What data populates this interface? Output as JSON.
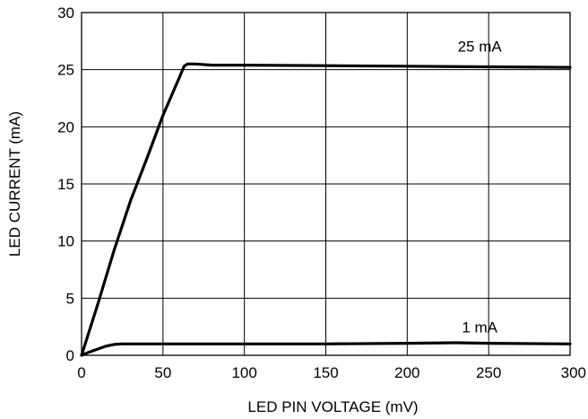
{
  "chart_data": {
    "type": "line",
    "title": "",
    "xlabel": "LED PIN VOLTAGE (mV)",
    "ylabel": "LED CURRENT (mA)",
    "xlim": [
      0,
      300
    ],
    "ylim": [
      0,
      30
    ],
    "x_ticks": [
      0,
      50,
      100,
      150,
      200,
      250,
      300
    ],
    "y_ticks": [
      0,
      5,
      10,
      15,
      20,
      25,
      30
    ],
    "x_tick_labels": [
      "0",
      "50",
      "100",
      "150",
      "200",
      "250",
      "300"
    ],
    "y_tick_labels": [
      "0",
      "5",
      "10",
      "15",
      "20",
      "25",
      "30"
    ],
    "grid": true,
    "line_color": "#000000",
    "series": [
      {
        "label": "25 mA",
        "x": [
          0,
          10,
          20,
          30,
          40,
          50,
          60,
          63,
          65,
          70,
          80,
          100,
          150,
          200,
          250,
          300
        ],
        "y": [
          0,
          4.5,
          9.2,
          13.5,
          17.2,
          21.0,
          24.3,
          25.3,
          25.5,
          25.5,
          25.4,
          25.4,
          25.35,
          25.3,
          25.25,
          25.2
        ]
      },
      {
        "label": "1 mA",
        "x": [
          0,
          5,
          10,
          15,
          20,
          25,
          50,
          100,
          150,
          200,
          230,
          250,
          300
        ],
        "y": [
          0,
          0.3,
          0.55,
          0.8,
          0.95,
          1.0,
          1.0,
          1.0,
          1.0,
          1.05,
          1.1,
          1.05,
          1.0
        ]
      }
    ]
  }
}
